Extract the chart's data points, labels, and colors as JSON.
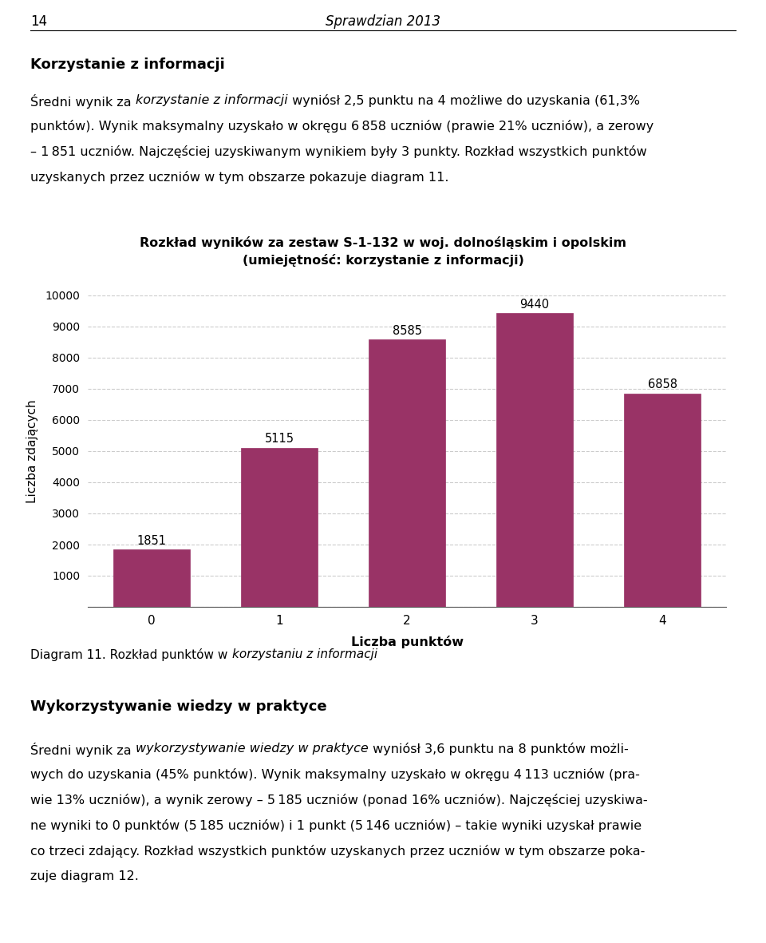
{
  "page_number": "14",
  "header_title": "Sprawdzian 2013",
  "section1_title": "Korzystanie z informacji",
  "chart_title_line1": "Rozkład wyników za zestaw S-1-132 w woj. dolnośląskim i opolskim",
  "chart_title_line2": "(umiejętność: korzystanie z informacji)",
  "categories": [
    0,
    1,
    2,
    3,
    4
  ],
  "values": [
    1851,
    5115,
    8585,
    9440,
    6858
  ],
  "bar_color": "#993366",
  "ylabel": "Liczba zdających",
  "xlabel": "Liczba punktów",
  "ylim": [
    0,
    10000
  ],
  "yticks": [
    0,
    1000,
    2000,
    3000,
    4000,
    5000,
    6000,
    7000,
    8000,
    9000,
    10000
  ],
  "section2_title": "Wykorzystywanie wiedzy w praktyce",
  "background_color": "#ffffff",
  "text_color": "#000000",
  "grid_color": "#cccccc",
  "bar_width": 0.6
}
